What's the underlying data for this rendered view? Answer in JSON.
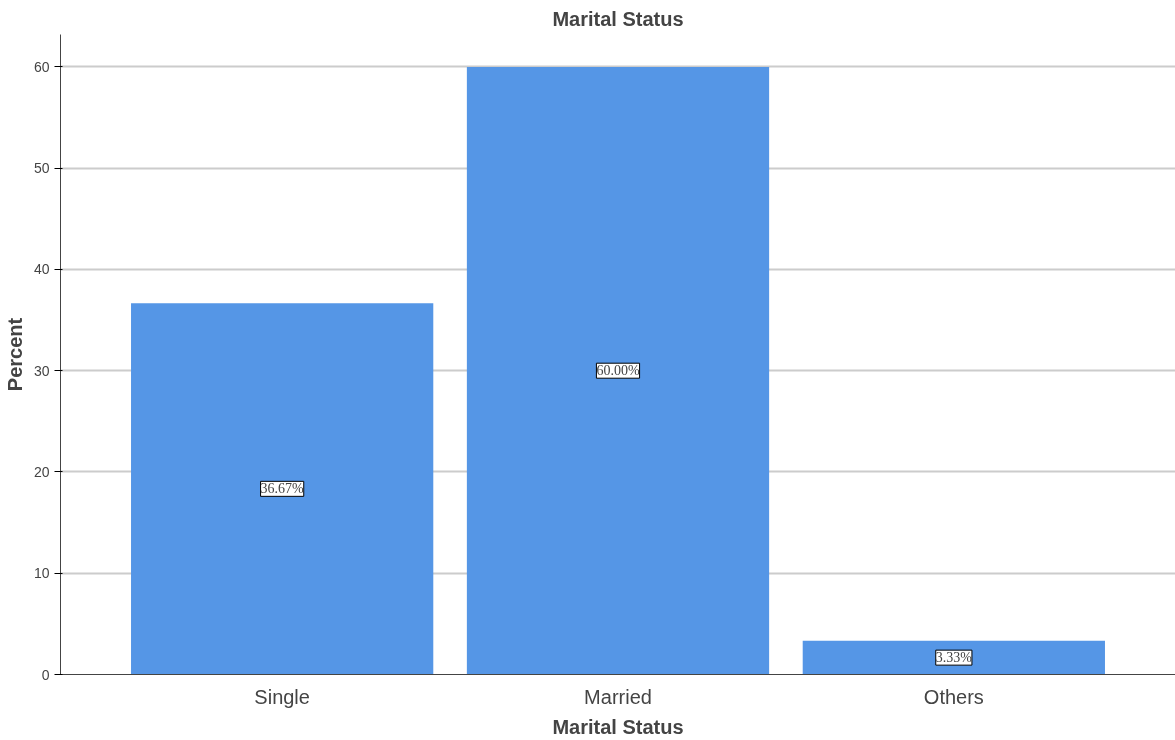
{
  "chart_data": {
    "type": "bar",
    "title": "Marital Status",
    "xlabel": "Marital Status",
    "ylabel": "Percent",
    "categories": [
      "Single",
      "Married",
      "Others"
    ],
    "values": [
      36.67,
      60.0,
      3.33
    ],
    "value_labels": [
      "36.67%",
      "60.00%",
      "3.33%"
    ],
    "color": "#5596e6",
    "ylim": [
      0,
      63.2
    ],
    "yticks": [
      0,
      10,
      20,
      30,
      40,
      50,
      60
    ],
    "grid": "y"
  }
}
